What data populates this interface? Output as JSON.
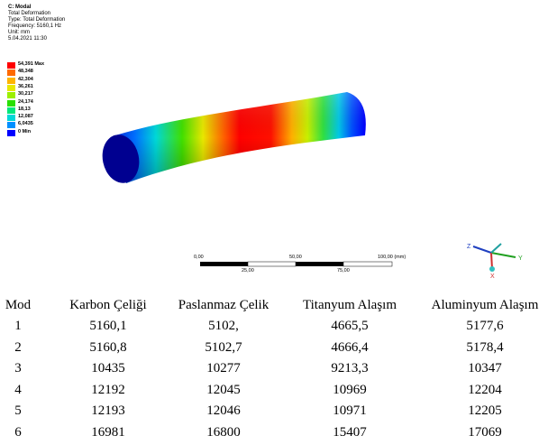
{
  "result": {
    "lines": [
      "C: Modal",
      "Total Deformation",
      "Type: Total Deformation",
      "Frequency: 5160,1 Hz",
      "Unit: mm",
      "5.04.2021 11:30"
    ]
  },
  "legend": [
    {
      "label": "54,391 Max",
      "color": "#ff0000"
    },
    {
      "label": "48,348",
      "color": "#ff6a00"
    },
    {
      "label": "42,304",
      "color": "#ffb400"
    },
    {
      "label": "36,261",
      "color": "#e8e800"
    },
    {
      "label": "30,217",
      "color": "#9cf000"
    },
    {
      "label": "24,174",
      "color": "#28e000"
    },
    {
      "label": "18,13",
      "color": "#00e87a"
    },
    {
      "label": "12,087",
      "color": "#00d8d8"
    },
    {
      "label": "6,0435",
      "color": "#0090ff"
    },
    {
      "label": "0 Min",
      "color": "#0000ff"
    }
  ],
  "scale_bar": {
    "top": [
      "0,00",
      "50,00",
      "100,00 (mm)"
    ],
    "bottom": [
      "25,00",
      "75,00"
    ]
  },
  "triad": {
    "z": "Z",
    "y": "Y",
    "x": "X"
  },
  "table": {
    "header": [
      "Mod",
      "Karbon Çeliği",
      "Paslanmaz Çelik",
      "Titanyum Alaşım",
      "Aluminyum Alaşım"
    ],
    "rows": [
      [
        "1",
        "5160,1",
        "5102,",
        "4665,5",
        "5177,6"
      ],
      [
        "2",
        "5160,8",
        "5102,7",
        "4666,4",
        "5178,4"
      ],
      [
        "3",
        "10435",
        "10277",
        "9213,3",
        "10347"
      ],
      [
        "4",
        "12192",
        "12045",
        "10969",
        "12204"
      ],
      [
        "5",
        "12193",
        "12046",
        "10971",
        "12205"
      ],
      [
        "6",
        "16981",
        "16800",
        "15407",
        "17069"
      ]
    ]
  }
}
